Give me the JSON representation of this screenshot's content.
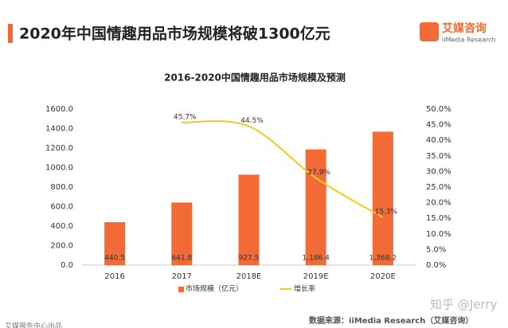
{
  "header": {
    "title": "2020年中国情趣用品市场规模将破1300亿元",
    "logo": "艾媒咨询",
    "logo_sub": "iiMedia Research"
  },
  "chart_data": {
    "type": "bar_line",
    "title": "2016-2020中国情趣用品市场规模及预测",
    "categories": [
      "2016",
      "2017",
      "2018E",
      "2019E",
      "2020E"
    ],
    "series": [
      {
        "name": "市场规模（亿元）",
        "color": "#f26a35",
        "type": "bar",
        "values": [
          440.5,
          641.8,
          927.5,
          1186.4,
          1368.2
        ],
        "value_labels": [
          "440.5",
          "641.8",
          "927.5",
          "1,186.4",
          "1,368.2"
        ]
      },
      {
        "name": "增长率",
        "color": "#f8c623",
        "type": "line",
        "axis": "y2",
        "values": [
          null,
          45.7,
          44.5,
          27.9,
          15.3
        ],
        "value_labels": [
          null,
          "45.7%",
          "44.5%",
          "27.9%",
          "15.3%"
        ]
      }
    ],
    "ylim": [
      0,
      1600
    ],
    "yticks": [
      {
        "value": 0,
        "label": "0.0"
      },
      {
        "value": 200,
        "label": "200.0"
      },
      {
        "value": 400,
        "label": "400.0"
      },
      {
        "value": 600,
        "label": "600.0"
      },
      {
        "value": 800,
        "label": "800.0"
      },
      {
        "value": 1000,
        "label": "1000.0"
      },
      {
        "value": 1200,
        "label": "1200.0"
      },
      {
        "value": 1400,
        "label": "1400.0"
      },
      {
        "value": 1600,
        "label": "1600.0"
      }
    ],
    "y2lim": [
      0,
      50
    ],
    "y2ticks": [
      {
        "value": 0,
        "label": "0.0%"
      },
      {
        "value": 5,
        "label": "5.0%"
      },
      {
        "value": 10,
        "label": "10.0%"
      },
      {
        "value": 15,
        "label": "15.0%"
      },
      {
        "value": 20,
        "label": "20.0%"
      },
      {
        "value": 25,
        "label": "25.0%"
      },
      {
        "value": 30,
        "label": "30.0%"
      },
      {
        "value": 35,
        "label": "35.0%"
      },
      {
        "value": 40,
        "label": "40.0%"
      },
      {
        "value": 45,
        "label": "45.0%"
      },
      {
        "value": 50,
        "label": "50.0%"
      }
    ],
    "legend": "bottom"
  },
  "footer": {
    "source": "数据来源：iiMedia Research（艾媒咨询）",
    "watermark": "知乎 @Jerry",
    "publisher": "艾媒报告中心出品"
  }
}
